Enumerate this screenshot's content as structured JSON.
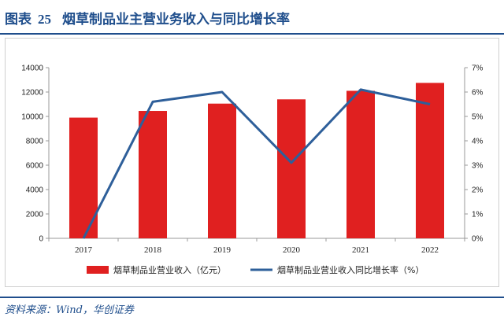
{
  "header": {
    "figure_label": "图表",
    "figure_number": "25",
    "title": "烟草制品业主营业务收入与同比增长率"
  },
  "source": "资料来源：Wind，华创证券",
  "colors": {
    "bar": "#e02020",
    "line": "#2e5f9a",
    "accent": "#1f4e8c",
    "axis": "#999999"
  },
  "chart_data": {
    "type": "bar",
    "title": "烟草制品业主营业务收入与同比增长率",
    "categories": [
      "2017",
      "2018",
      "2019",
      "2020",
      "2021",
      "2022"
    ],
    "series": [
      {
        "name": "烟草制品业营业收入（亿元）",
        "type": "bar",
        "axis": "left",
        "values": [
          9900,
          10450,
          11050,
          11400,
          12100,
          12750
        ]
      },
      {
        "name": "烟草制品业营业收入同比增长率（%）",
        "type": "line",
        "axis": "right",
        "values": [
          0.0,
          5.6,
          6.0,
          3.1,
          6.1,
          5.5
        ]
      }
    ],
    "y_left": {
      "ylim": [
        0,
        14000
      ],
      "ticks": [
        "0",
        "2000",
        "4000",
        "6000",
        "8000",
        "10000",
        "12000",
        "14000"
      ]
    },
    "y_right": {
      "ylim": [
        0,
        7
      ],
      "ticks": [
        "0%",
        "1%",
        "2%",
        "3%",
        "4%",
        "5%",
        "6%",
        "7%"
      ]
    },
    "grid": false,
    "legend_position": "bottom"
  }
}
